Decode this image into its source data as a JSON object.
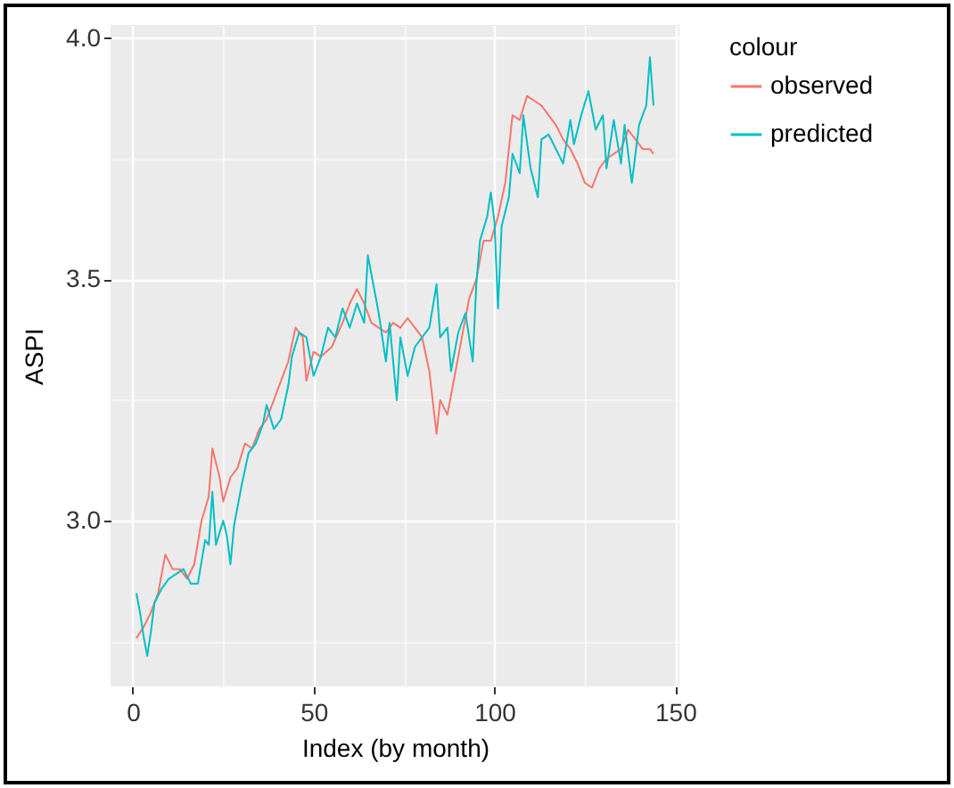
{
  "chart_data": {
    "type": "line",
    "xlabel": "Index (by month)",
    "ylabel": "ASPI",
    "legend_title": "colour",
    "xlim": [
      -6.15,
      151.15
    ],
    "ylim": [
      2.657,
      4.027
    ],
    "xticks": [
      0,
      {
        "value": 25,
        "label": null
      },
      50,
      {
        "value": 75,
        "label": null
      },
      100,
      {
        "value": 125,
        "label": null
      },
      150
    ],
    "yticks": [
      {
        "value": 2.75,
        "label": null
      },
      {
        "value": 3.0,
        "label": "3.0"
      },
      {
        "value": 3.25,
        "label": null
      },
      {
        "value": 3.5,
        "label": "3.5"
      },
      {
        "value": 3.75,
        "label": null
      },
      {
        "value": 4.0,
        "label": "4.0"
      }
    ],
    "grid": true,
    "legend": "right",
    "line_style": "solid",
    "marker": "none",
    "series": [
      {
        "name": "observed",
        "color": "#f8766d",
        "x": [
          1,
          3,
          5,
          7,
          9,
          11,
          13,
          15,
          17,
          19,
          21,
          22,
          24,
          25,
          27,
          29,
          31,
          33,
          35,
          37,
          39,
          41,
          43,
          45,
          47,
          48,
          50,
          52,
          55,
          58,
          60,
          62,
          64,
          66,
          68,
          70,
          72,
          74,
          76,
          78,
          80,
          82,
          84,
          85,
          87,
          89,
          91,
          93,
          95,
          97,
          99,
          101,
          103,
          105,
          107,
          109,
          111,
          113,
          115,
          117,
          119,
          121,
          123,
          125,
          127,
          129,
          131,
          133,
          135,
          137,
          139,
          141,
          143,
          144
        ],
        "values": [
          2.757,
          2.78,
          2.81,
          2.85,
          2.93,
          2.9,
          2.9,
          2.88,
          2.91,
          3.0,
          3.05,
          3.15,
          3.09,
          3.04,
          3.09,
          3.11,
          3.16,
          3.15,
          3.19,
          3.21,
          3.25,
          3.29,
          3.33,
          3.4,
          3.38,
          3.29,
          3.35,
          3.34,
          3.36,
          3.41,
          3.45,
          3.48,
          3.45,
          3.41,
          3.4,
          3.39,
          3.41,
          3.4,
          3.42,
          3.4,
          3.38,
          3.31,
          3.18,
          3.25,
          3.22,
          3.3,
          3.38,
          3.46,
          3.5,
          3.58,
          3.58,
          3.63,
          3.7,
          3.84,
          3.83,
          3.88,
          3.87,
          3.86,
          3.84,
          3.82,
          3.79,
          3.77,
          3.74,
          3.7,
          3.69,
          3.73,
          3.75,
          3.76,
          3.77,
          3.81,
          3.79,
          3.77,
          3.77,
          3.76
        ]
      },
      {
        "name": "predicted",
        "color": "#00bfc4",
        "x": [
          1,
          2,
          3,
          4,
          5,
          6,
          8,
          10,
          12,
          14,
          16,
          18,
          20,
          21,
          22,
          23,
          25,
          26,
          27,
          28,
          30,
          32,
          34,
          36,
          37,
          39,
          41,
          43,
          44,
          46,
          48,
          50,
          52,
          54,
          56,
          58,
          60,
          62,
          64,
          65,
          66,
          68,
          70,
          71,
          73,
          74,
          76,
          78,
          80,
          82,
          84,
          85,
          87,
          88,
          90,
          92,
          94,
          95,
          96,
          98,
          99,
          100,
          101,
          102,
          104,
          105,
          107,
          108,
          110,
          112,
          113,
          115,
          117,
          119,
          121,
          122,
          124,
          126,
          128,
          130,
          131,
          133,
          135,
          136,
          138,
          140,
          142,
          143,
          144
        ],
        "values": [
          2.85,
          2.81,
          2.76,
          2.72,
          2.77,
          2.83,
          2.86,
          2.88,
          2.89,
          2.9,
          2.87,
          2.87,
          2.96,
          2.95,
          3.06,
          2.95,
          3.0,
          2.97,
          2.91,
          2.99,
          3.07,
          3.14,
          3.16,
          3.2,
          3.24,
          3.19,
          3.21,
          3.28,
          3.34,
          3.39,
          3.38,
          3.3,
          3.34,
          3.4,
          3.38,
          3.44,
          3.4,
          3.45,
          3.41,
          3.55,
          3.51,
          3.43,
          3.33,
          3.41,
          3.25,
          3.38,
          3.3,
          3.36,
          3.38,
          3.4,
          3.49,
          3.38,
          3.4,
          3.31,
          3.39,
          3.43,
          3.33,
          3.49,
          3.58,
          3.63,
          3.68,
          3.62,
          3.44,
          3.61,
          3.67,
          3.76,
          3.72,
          3.84,
          3.73,
          3.67,
          3.79,
          3.8,
          3.77,
          3.74,
          3.83,
          3.78,
          3.84,
          3.89,
          3.81,
          3.84,
          3.73,
          3.83,
          3.74,
          3.82,
          3.7,
          3.82,
          3.86,
          3.96,
          3.86
        ]
      }
    ]
  }
}
